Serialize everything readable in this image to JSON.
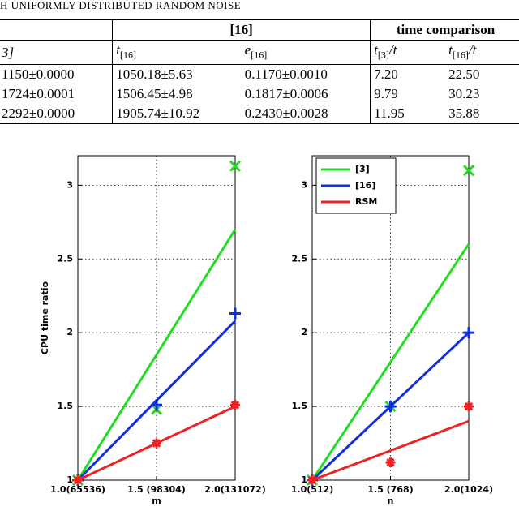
{
  "caption": "H UNIFORMLY DISTRIBUTED RANDOM NOISE",
  "table": {
    "group_headers": [
      "[16]",
      "time comparison"
    ],
    "headers": [
      {
        "main": "3]",
        "sub": ""
      },
      {
        "main": "t",
        "sub": "[16]"
      },
      {
        "main": "e",
        "sub": "[16]"
      },
      {
        "main": "t",
        "sub": "[3]",
        "tail": "/t"
      },
      {
        "main": "t",
        "sub": "[16]",
        "tail": "/t"
      }
    ],
    "rows": [
      [
        "1150±0.0000",
        "1050.18±5.63",
        "0.1170±0.0010",
        "7.20",
        "22.50"
      ],
      [
        "1724±0.0001",
        "1506.45±4.98",
        "0.1817±0.0006",
        "9.79",
        "30.23"
      ],
      [
        "2292±0.0000",
        "1905.74±10.92",
        "0.2430±0.0028",
        "11.95",
        "35.88"
      ]
    ]
  },
  "chart_data": [
    {
      "type": "line",
      "ylabel": "CPU time ratio",
      "xlabel": "m",
      "x": [
        1,
        1.5,
        2
      ],
      "xlim": [
        1,
        2
      ],
      "xticks": [
        {
          "value": 1,
          "label": "1.0(65536)"
        },
        {
          "value": 1.5,
          "label": "1.5 (98304)"
        },
        {
          "value": 2,
          "label": "2.0(131072)"
        }
      ],
      "ylim": [
        1,
        3.2
      ],
      "yticks": [
        1,
        1.5,
        2,
        2.5,
        3
      ],
      "grid": true,
      "series": [
        {
          "name": "[3]",
          "color": "#22dd22",
          "marker": "x",
          "values": [
            1,
            1.85,
            2.7
          ],
          "points": [
            1,
            1.48,
            3.13
          ]
        },
        {
          "name": "[16]",
          "color": "#1030e0",
          "marker": "+",
          "values": [
            1,
            1.54,
            2.08
          ],
          "points": [
            1,
            1.51,
            2.13
          ]
        },
        {
          "name": "RSM",
          "color": "#ee2222",
          "marker": "*",
          "values": [
            1,
            1.25,
            1.5
          ],
          "points": [
            1,
            1.25,
            1.51
          ]
        }
      ]
    },
    {
      "type": "line",
      "xlabel": "n",
      "x": [
        1,
        1.5,
        2
      ],
      "xlim": [
        1,
        2
      ],
      "xticks": [
        {
          "value": 1,
          "label": "1.0(512)"
        },
        {
          "value": 1.5,
          "label": "1.5 (768)"
        },
        {
          "value": 2,
          "label": "2.0(1024)"
        }
      ],
      "ylim": [
        1,
        3.2
      ],
      "yticks": [
        1,
        1.5,
        2,
        2.5,
        3
      ],
      "grid": true,
      "legend": "upper left",
      "series": [
        {
          "name": "[3]",
          "color": "#22dd22",
          "marker": "x",
          "values": [
            1,
            1.8,
            2.6
          ],
          "points": [
            1,
            1.5,
            3.1
          ]
        },
        {
          "name": "[16]",
          "color": "#1030e0",
          "marker": "+",
          "values": [
            1,
            1.5,
            2.0
          ],
          "points": [
            1,
            1.5,
            2.0
          ]
        },
        {
          "name": "RSM",
          "color": "#ee2222",
          "marker": "*",
          "values": [
            1,
            1.2,
            1.4
          ],
          "points": [
            1,
            1.12,
            1.5
          ]
        }
      ]
    }
  ]
}
